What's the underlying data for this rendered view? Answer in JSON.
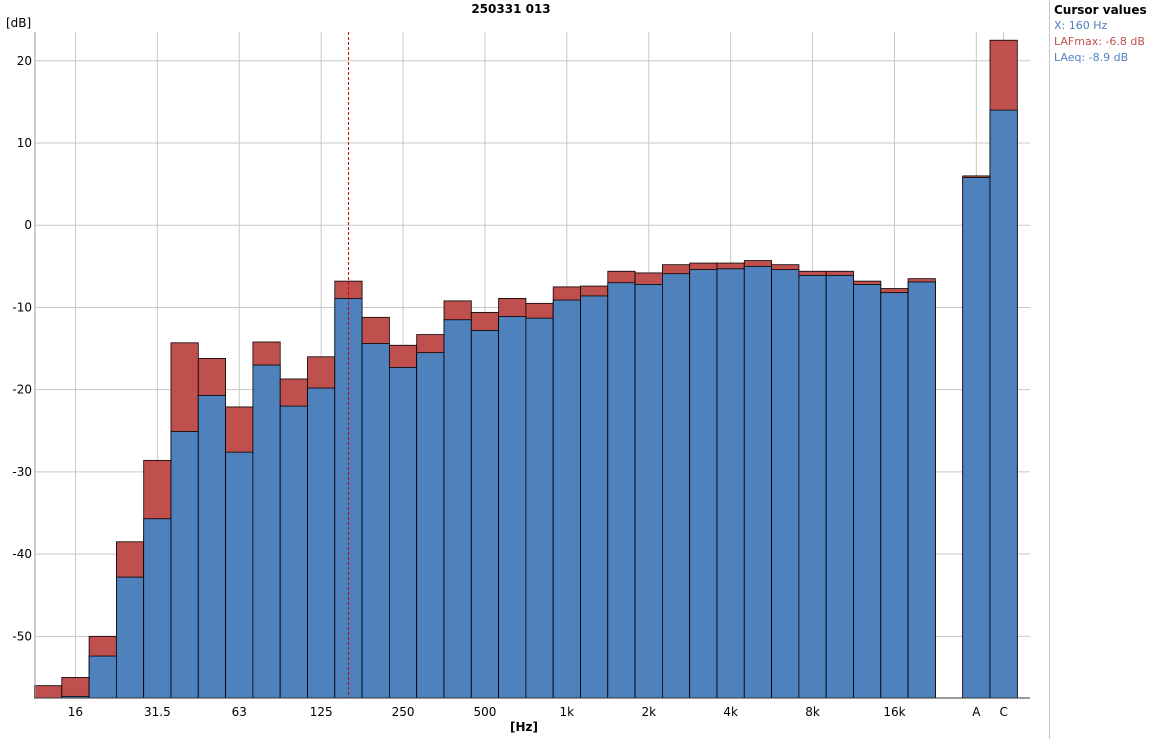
{
  "chart_data": {
    "type": "bar",
    "title": "250331 013",
    "ylabel": "[dB]",
    "xlabel": "[Hz]",
    "ylim": [
      -57.5,
      23.5
    ],
    "yticks": [
      20,
      10,
      0,
      -10,
      -20,
      -30,
      -40,
      -50
    ],
    "xscale": "log (1/3-octave bands) plus broadband A and C",
    "grid": true,
    "cursor_x": "160",
    "categories": [
      "12.5",
      "16",
      "20",
      "25",
      "31.5",
      "40",
      "50",
      "63",
      "80",
      "100",
      "125",
      "160",
      "200",
      "250",
      "315",
      "400",
      "500",
      "630",
      "800",
      "1k",
      "1.25k",
      "1.6k",
      "2k",
      "2.5k",
      "3.15k",
      "4k",
      "5k",
      "6.3k",
      "8k",
      "10k",
      "12.5k",
      "16k",
      "20k",
      "A",
      "C"
    ],
    "tick_labels": [
      "16",
      "31.5",
      "63",
      "125",
      "250",
      "500",
      "1k",
      "2k",
      "4k",
      "8k",
      "16k",
      "A",
      "C"
    ],
    "series": [
      {
        "name": "LAFmax",
        "color": "#c0504d",
        "values": [
          -56.0,
          -55.0,
          -50.0,
          -38.5,
          -28.6,
          -14.3,
          -16.2,
          -22.1,
          -14.2,
          -18.7,
          -16.0,
          -6.8,
          -11.2,
          -14.6,
          -13.3,
          -9.2,
          -10.6,
          -8.9,
          -9.5,
          -7.5,
          -7.4,
          -5.6,
          -5.8,
          -4.8,
          -4.6,
          -4.6,
          -4.3,
          -4.8,
          -5.6,
          -5.6,
          -6.8,
          -7.7,
          -6.5,
          6.0,
          22.5
        ]
      },
      {
        "name": "LAeq",
        "color": "#4f81bd",
        "values": [
          -57.5,
          -57.3,
          -52.4,
          -42.8,
          -35.7,
          -25.1,
          -20.7,
          -27.6,
          -17.0,
          -22.0,
          -19.8,
          -8.9,
          -14.4,
          -17.3,
          -15.5,
          -11.5,
          -12.8,
          -11.1,
          -11.3,
          -9.1,
          -8.6,
          -7.0,
          -7.2,
          -5.9,
          -5.4,
          -5.3,
          -5.0,
          -5.4,
          -6.1,
          -6.1,
          -7.2,
          -8.2,
          -6.9,
          5.8,
          14.0
        ]
      }
    ]
  },
  "cursor_panel": {
    "title": "Cursor values",
    "x_value": "X: 160 Hz",
    "lafmax_value": "LAFmax: -6.8 dB",
    "laeq_value": "LAeq: -8.9 dB",
    "x_color": "#4f81bd",
    "lafmax_color": "#c0504d",
    "laeq_color": "#4f81bd"
  }
}
